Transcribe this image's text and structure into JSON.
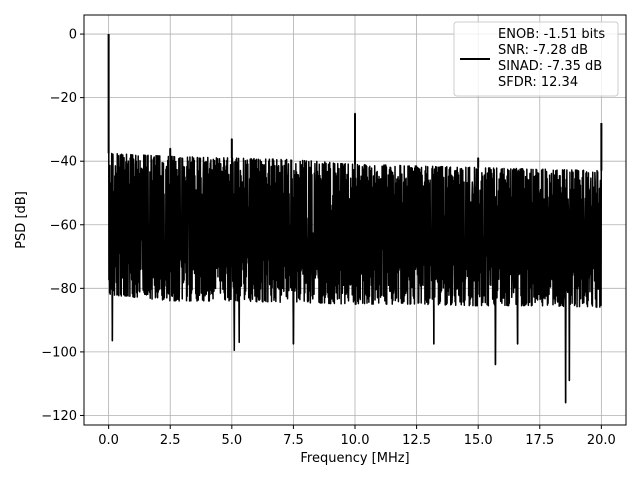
{
  "chart_data": {
    "type": "line",
    "xlabel": "Frequency [MHz]",
    "ylabel": "PSD [dB]",
    "xlim": [
      -1.0,
      21.0
    ],
    "ylim": [
      -123,
      6
    ],
    "x_ticks": [
      0.0,
      2.5,
      5.0,
      7.5,
      10.0,
      12.5,
      15.0,
      17.5,
      20.0
    ],
    "x_tick_labels": [
      "0.0",
      "2.5",
      "5.0",
      "7.5",
      "10.0",
      "12.5",
      "15.0",
      "17.5",
      "20.0"
    ],
    "y_ticks": [
      0,
      -20,
      -40,
      -60,
      -80,
      -100,
      -120
    ],
    "y_tick_labels": [
      "0",
      "−20",
      "−40",
      "−60",
      "−80",
      "−100",
      "−120"
    ],
    "grid": true,
    "legend_position": "top-right",
    "legend_lines": [
      "ENOB: -1.51 bits",
      "SNR: -7.28 dB",
      "SINAD: -7.35 dB",
      "SFDR: 12.34"
    ],
    "series_color": "#000000",
    "noise_floor": {
      "x": [
        0.0,
        2.5,
        5.0,
        7.5,
        10.0,
        12.5,
        15.0,
        17.5,
        20.0
      ],
      "upper": [
        -37.5,
        -38.5,
        -39,
        -39.5,
        -41,
        -41.5,
        -42,
        -42.5,
        -43
      ],
      "lower": [
        -82,
        -84,
        -84,
        -84.5,
        -85,
        -85,
        -85.5,
        -85.5,
        -86
      ]
    },
    "peaks": [
      {
        "x": 0.0,
        "y": 0
      },
      {
        "x": 2.5,
        "y": -36
      },
      {
        "x": 5.0,
        "y": -33
      },
      {
        "x": 10.0,
        "y": -25
      },
      {
        "x": 15.0,
        "y": -39
      },
      {
        "x": 20.0,
        "y": -28
      }
    ],
    "dips": [
      {
        "x": 0.15,
        "y": -96.5
      },
      {
        "x": 5.1,
        "y": -99.5
      },
      {
        "x": 5.3,
        "y": -97
      },
      {
        "x": 7.5,
        "y": -97.5
      },
      {
        "x": 13.2,
        "y": -97.5
      },
      {
        "x": 15.7,
        "y": -104
      },
      {
        "x": 16.6,
        "y": -97.5
      },
      {
        "x": 18.55,
        "y": -116
      },
      {
        "x": 18.7,
        "y": -109
      }
    ]
  }
}
